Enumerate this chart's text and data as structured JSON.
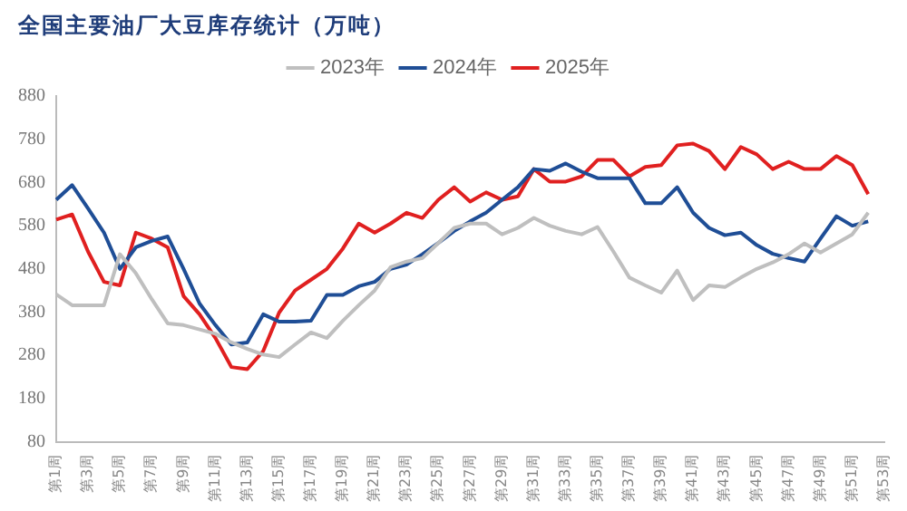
{
  "chart_data": {
    "type": "line",
    "title": "全国主要油厂大豆库存统计（万吨）",
    "categories": [
      "第1周",
      null,
      "第3周",
      null,
      "第5周",
      null,
      "第7周",
      null,
      "第9周",
      null,
      "第11周",
      null,
      "第13周",
      null,
      "第15周",
      null,
      "第17周",
      null,
      "第19周",
      null,
      "第21周",
      null,
      "第23周",
      null,
      "第25周",
      null,
      "第27周",
      null,
      "第29周",
      null,
      "第31周",
      null,
      "第33周",
      null,
      "第35周",
      null,
      "第37周",
      null,
      "第39周",
      null,
      "第41周",
      null,
      "第43周",
      null,
      "第45周",
      null,
      "第47周",
      null,
      "第49周",
      null,
      "第51周",
      null,
      "第53周"
    ],
    "series": [
      {
        "name": "2023年",
        "color": "#bfbfbf",
        "values": [
          421,
          396,
          396,
          396,
          514,
          470,
          410,
          354,
          350,
          340,
          330,
          310,
          295,
          282,
          276,
          305,
          333,
          320,
          360,
          396,
          430,
          484,
          497,
          505,
          540,
          575,
          585,
          585,
          560,
          575,
          598,
          580,
          568,
          560,
          577,
          520,
          460,
          442,
          425,
          476,
          408,
          442,
          438,
          460,
          480,
          495,
          514,
          539,
          518,
          539,
          560,
          610,
          null
        ]
      },
      {
        "name": "2024年",
        "color": "#1f4e96",
        "values": [
          640,
          674,
          620,
          564,
          480,
          530,
          545,
          555,
          480,
          400,
          350,
          305,
          310,
          375,
          358,
          358,
          360,
          420,
          420,
          440,
          450,
          480,
          490,
          514,
          540,
          568,
          590,
          610,
          640,
          669,
          711,
          707,
          724,
          705,
          690,
          690,
          690,
          632,
          632,
          669,
          610,
          575,
          558,
          564,
          535,
          515,
          505,
          497,
          550,
          602,
          580,
          590,
          null
        ]
      },
      {
        "name": "2025年",
        "color": "#e02020",
        "values": [
          594,
          606,
          520,
          450,
          442,
          564,
          550,
          530,
          417,
          375,
          320,
          253,
          248,
          290,
          379,
          430,
          455,
          480,
          527,
          585,
          564,
          585,
          610,
          598,
          640,
          669,
          636,
          657,
          640,
          648,
          711,
          682,
          682,
          694,
          732,
          732,
          694,
          716,
          720,
          766,
          770,
          753,
          711,
          762,
          745,
          711,
          728,
          711,
          711,
          741,
          720,
          653,
          null
        ]
      }
    ],
    "ylim": [
      80,
      880
    ],
    "yticks": [
      80,
      180,
      280,
      380,
      480,
      580,
      680,
      780,
      880
    ],
    "grid": false,
    "legend": "top",
    "marker": "none",
    "line_style": "solid"
  }
}
